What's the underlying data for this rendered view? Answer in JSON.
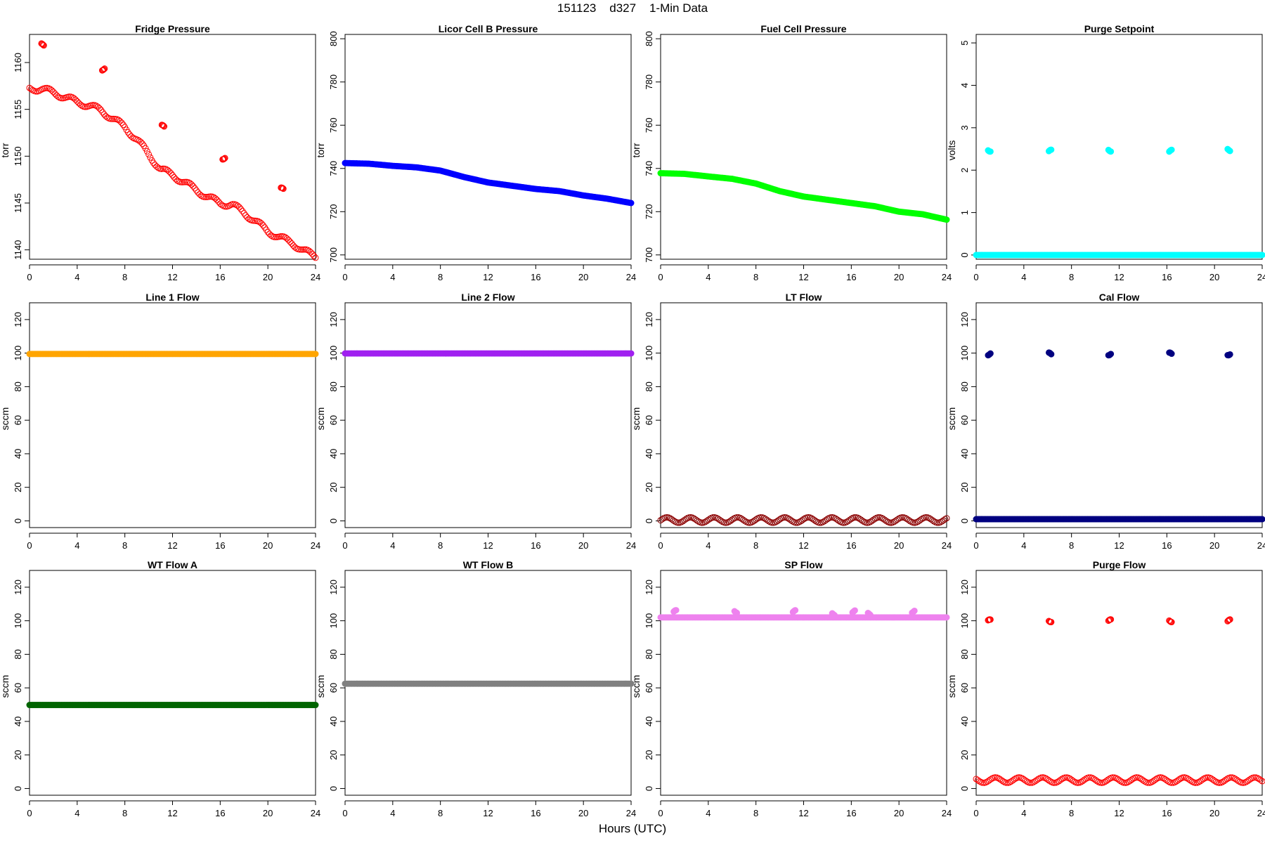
{
  "page": {
    "title": "151123    d327    1-Min Data",
    "xlabel": "Hours (UTC)"
  },
  "x_axis": {
    "range": [
      0,
      24
    ],
    "ticks": [
      0,
      4,
      8,
      12,
      16,
      20,
      24
    ]
  },
  "chart_data": [
    {
      "type": "scatter",
      "title": "Fridge Pressure",
      "ylabel": "torr",
      "color": "#ff0000",
      "marker": "open-circle",
      "ylim": [
        1139,
        1163
      ],
      "yticks": [
        1140,
        1145,
        1150,
        1155,
        1160
      ],
      "series": [
        {
          "name": "Fridge Pressure",
          "x": [
            0,
            1,
            2,
            3,
            4,
            5,
            6,
            7,
            8,
            9,
            10,
            11,
            12,
            13,
            14,
            15,
            16,
            17,
            18,
            19,
            20,
            21,
            22,
            23,
            24
          ],
          "values": [
            1157.2,
            1157.2,
            1156.8,
            1156.3,
            1155.8,
            1155.4,
            1154.9,
            1154.0,
            1153.1,
            1151.8,
            1150.2,
            1148.6,
            1148.0,
            1147.2,
            1146.4,
            1145.6,
            1145.0,
            1144.8,
            1144.0,
            1143.0,
            1142.0,
            1141.3,
            1140.8,
            1139.9,
            1139.3
          ]
        }
      ],
      "outliers": [
        {
          "x": 1.1,
          "y": 1161.9
        },
        {
          "x": 6.2,
          "y": 1159.3
        },
        {
          "x": 11.2,
          "y": 1153.2
        },
        {
          "x": 16.3,
          "y": 1149.8
        },
        {
          "x": 21.2,
          "y": 1146.5
        }
      ]
    },
    {
      "type": "scatter",
      "title": "Licor Cell B Pressure",
      "ylabel": "torr",
      "color": "#0000ff",
      "marker": "filled",
      "ylim": [
        698,
        802
      ],
      "yticks": [
        700,
        720,
        740,
        760,
        780,
        800
      ],
      "series": [
        {
          "name": "Licor Cell B Pressure",
          "x": [
            0,
            2,
            4,
            6,
            8,
            10,
            12,
            14,
            16,
            18,
            20,
            22,
            24
          ],
          "values": [
            742.5,
            742.2,
            741.2,
            740.5,
            739.0,
            736.0,
            733.5,
            732.0,
            730.5,
            729.5,
            727.5,
            726.0,
            724.0
          ]
        }
      ]
    },
    {
      "type": "scatter",
      "title": "Fuel Cell Pressure",
      "ylabel": "torr",
      "color": "#00ff00",
      "marker": "filled",
      "ylim": [
        698,
        802
      ],
      "yticks": [
        700,
        720,
        740,
        760,
        780,
        800
      ],
      "series": [
        {
          "name": "Fuel Cell Pressure",
          "x": [
            0,
            2,
            4,
            6,
            8,
            10,
            12,
            14,
            16,
            18,
            20,
            22,
            24
          ],
          "values": [
            737.8,
            737.5,
            736.3,
            735.2,
            733.0,
            729.5,
            727.0,
            725.5,
            724.0,
            722.5,
            720.0,
            718.8,
            716.3
          ]
        }
      ]
    },
    {
      "type": "scatter",
      "title": "Purge Setpoint",
      "ylabel": "volts",
      "color": "#00ffff",
      "marker": "filled",
      "ylim": [
        -0.1,
        5.2
      ],
      "yticks": [
        0,
        1,
        2,
        3,
        4,
        5
      ],
      "series": [
        {
          "name": "Purge Setpoint",
          "x": [
            0,
            24
          ],
          "values": [
            0,
            0
          ]
        }
      ],
      "outliers": [
        {
          "x": 1.1,
          "y": 2.47
        },
        {
          "x": 6.2,
          "y": 2.45
        },
        {
          "x": 11.2,
          "y": 2.47
        },
        {
          "x": 16.3,
          "y": 2.45
        },
        {
          "x": 21.2,
          "y": 2.48
        }
      ]
    },
    {
      "type": "scatter",
      "title": "Line 1 Flow",
      "ylabel": "sccm",
      "color": "#ffa500",
      "marker": "filled",
      "ylim": [
        -4,
        130
      ],
      "yticks": [
        0,
        20,
        40,
        60,
        80,
        100,
        120
      ],
      "series": [
        {
          "name": "Line 1 Flow",
          "x": [
            0,
            24
          ],
          "values": [
            99.5,
            99.5
          ]
        }
      ]
    },
    {
      "type": "scatter",
      "title": "Line 2 Flow",
      "ylabel": "sccm",
      "color": "#a020f0",
      "marker": "filled",
      "ylim": [
        -4,
        130
      ],
      "yticks": [
        0,
        20,
        40,
        60,
        80,
        100,
        120
      ],
      "series": [
        {
          "name": "Line 2 Flow",
          "x": [
            0,
            24
          ],
          "values": [
            99.8,
            99.8
          ]
        }
      ]
    },
    {
      "type": "scatter",
      "title": "LT Flow",
      "ylabel": "sccm",
      "color": "#8b0000",
      "marker": "open-circle",
      "ylim": [
        -4,
        130
      ],
      "yticks": [
        0,
        20,
        40,
        60,
        80,
        100,
        120
      ],
      "series": [
        {
          "name": "LT Flow",
          "x": [
            0,
            24
          ],
          "values": [
            0.5,
            0.5
          ]
        }
      ]
    },
    {
      "type": "scatter",
      "title": "Cal Flow",
      "ylabel": "sccm",
      "color": "#000080",
      "marker": "filled",
      "ylim": [
        -4,
        130
      ],
      "yticks": [
        0,
        20,
        40,
        60,
        80,
        100,
        120
      ],
      "series": [
        {
          "name": "Cal Flow",
          "x": [
            0,
            24
          ],
          "values": [
            1,
            1
          ]
        }
      ],
      "outliers": [
        {
          "x": 1.1,
          "y": 99.5
        },
        {
          "x": 6.2,
          "y": 99.5
        },
        {
          "x": 11.2,
          "y": 99.5
        },
        {
          "x": 16.3,
          "y": 99.5
        },
        {
          "x": 21.2,
          "y": 99.5
        }
      ]
    },
    {
      "type": "scatter",
      "title": "WT Flow A",
      "ylabel": "sccm",
      "color": "#006400",
      "marker": "filled",
      "ylim": [
        -4,
        130
      ],
      "yticks": [
        0,
        20,
        40,
        60,
        80,
        100,
        120
      ],
      "series": [
        {
          "name": "WT Flow A",
          "x": [
            0,
            24
          ],
          "values": [
            49.8,
            49.8
          ]
        }
      ]
    },
    {
      "type": "scatter",
      "title": "WT Flow B",
      "ylabel": "sccm",
      "color": "#808080",
      "marker": "filled",
      "ylim": [
        -4,
        130
      ],
      "yticks": [
        0,
        20,
        40,
        60,
        80,
        100,
        120
      ],
      "series": [
        {
          "name": "WT Flow B",
          "x": [
            0,
            24
          ],
          "values": [
            62.5,
            62.5
          ]
        }
      ]
    },
    {
      "type": "scatter",
      "title": "SP Flow",
      "ylabel": "sccm",
      "color": "#ee82ee",
      "marker": "filled",
      "ylim": [
        -4,
        130
      ],
      "yticks": [
        0,
        20,
        40,
        60,
        80,
        100,
        120
      ],
      "series": [
        {
          "name": "SP Flow",
          "x": [
            0,
            24
          ],
          "values": [
            102,
            102
          ]
        }
      ],
      "outliers": [
        {
          "x": 1.2,
          "y": 105.5
        },
        {
          "x": 6.3,
          "y": 105.5
        },
        {
          "x": 11.2,
          "y": 105.5
        },
        {
          "x": 14.5,
          "y": 104
        },
        {
          "x": 16.2,
          "y": 105.5
        },
        {
          "x": 17.5,
          "y": 104
        },
        {
          "x": 21.2,
          "y": 105.5
        }
      ]
    },
    {
      "type": "scatter",
      "title": "Purge Flow",
      "ylabel": "sccm",
      "color": "#ff0000",
      "marker": "open-circle",
      "ylim": [
        -4,
        130
      ],
      "yticks": [
        0,
        20,
        40,
        60,
        80,
        100,
        120
      ],
      "series": [
        {
          "name": "Purge Flow",
          "x": [
            0,
            24
          ],
          "values": [
            5,
            5
          ]
        }
      ],
      "outliers": [
        {
          "x": 1.1,
          "y": 100
        },
        {
          "x": 6.2,
          "y": 100
        },
        {
          "x": 11.2,
          "y": 100
        },
        {
          "x": 16.3,
          "y": 100
        },
        {
          "x": 21.2,
          "y": 100
        }
      ]
    }
  ]
}
